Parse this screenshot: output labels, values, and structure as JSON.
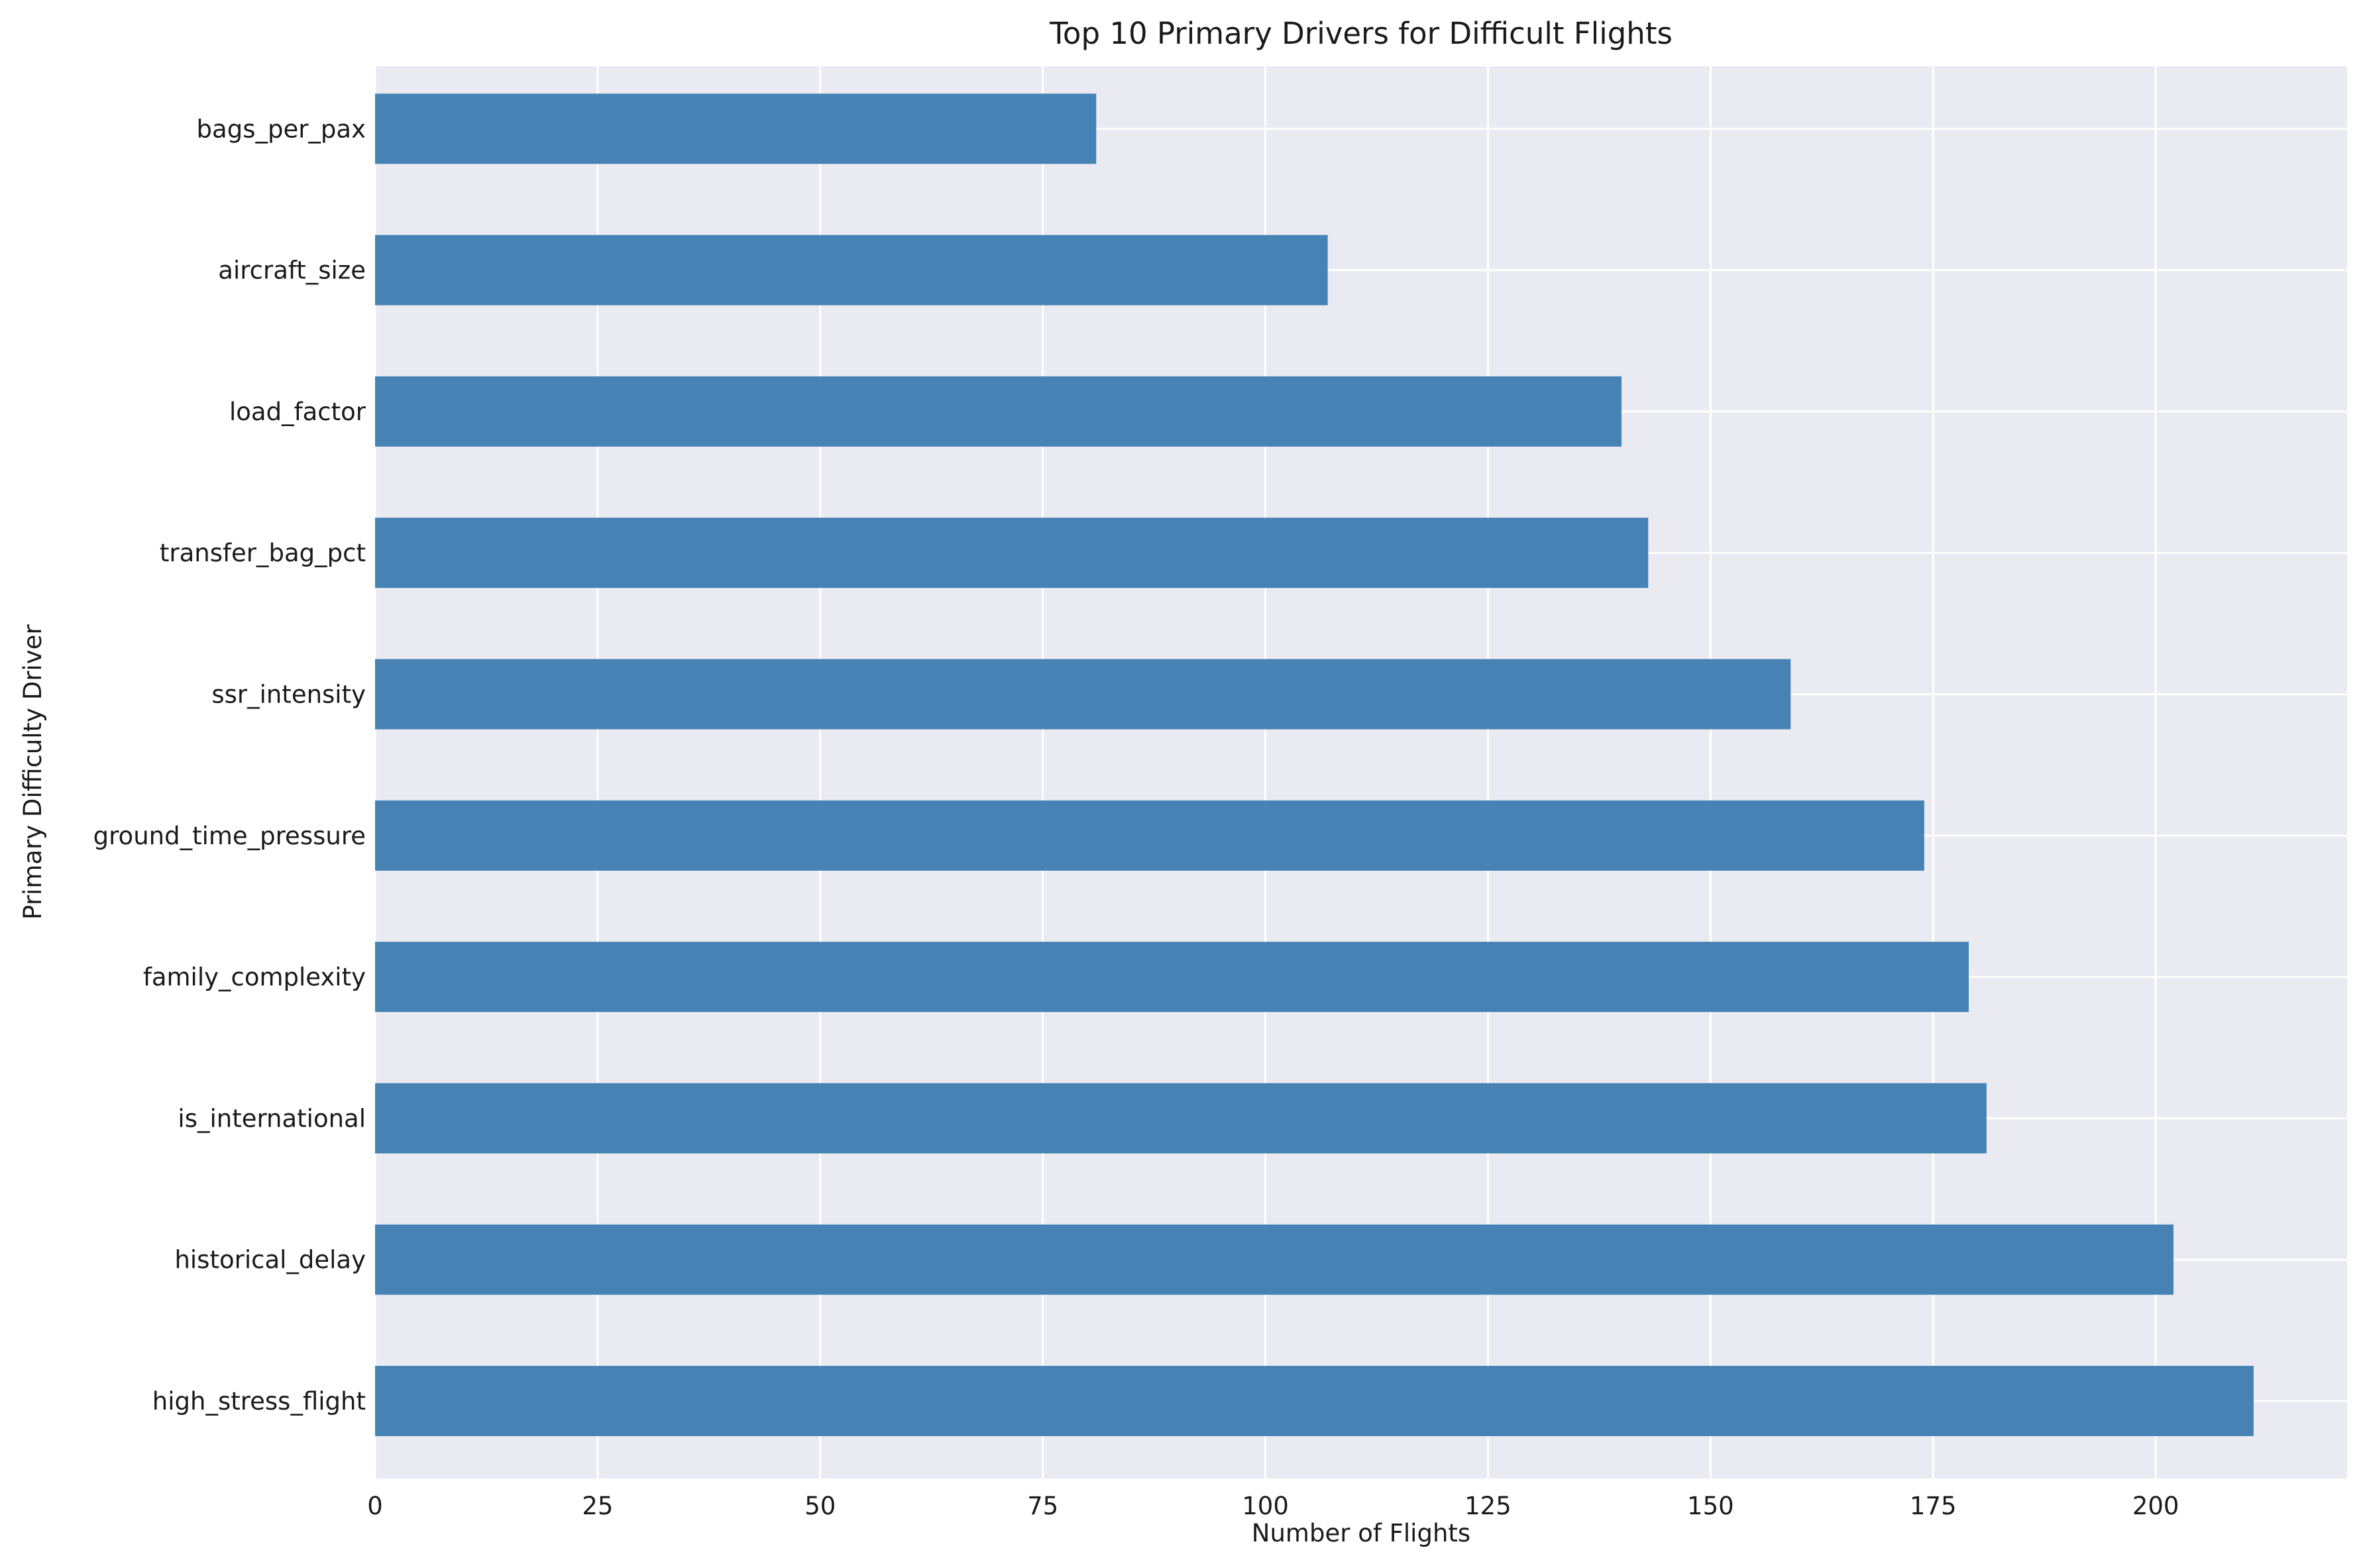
{
  "chart_data": {
    "type": "bar",
    "orientation": "horizontal",
    "title": "Top 10 Primary Drivers for Difficult Flights",
    "xlabel": "Number of Flights",
    "ylabel": "Primary Difficulty Driver",
    "categories": [
      "high_stress_flight",
      "historical_delay",
      "is_international",
      "family_complexity",
      "ground_time_pressure",
      "ssr_intensity",
      "transfer_bag_pct",
      "load_factor",
      "aircraft_size",
      "bags_per_pax"
    ],
    "values": [
      211,
      202,
      181,
      179,
      174,
      159,
      143,
      140,
      107,
      81
    ],
    "xlim": [
      0,
      221.5
    ],
    "xticks": [
      0,
      25,
      50,
      75,
      100,
      125,
      150,
      175,
      200
    ],
    "grid": true,
    "colors": {
      "bar": "#4682b4",
      "plot_background": "#eaeaf2",
      "grid": "#ffffff",
      "text": "#1a1a1a"
    }
  }
}
